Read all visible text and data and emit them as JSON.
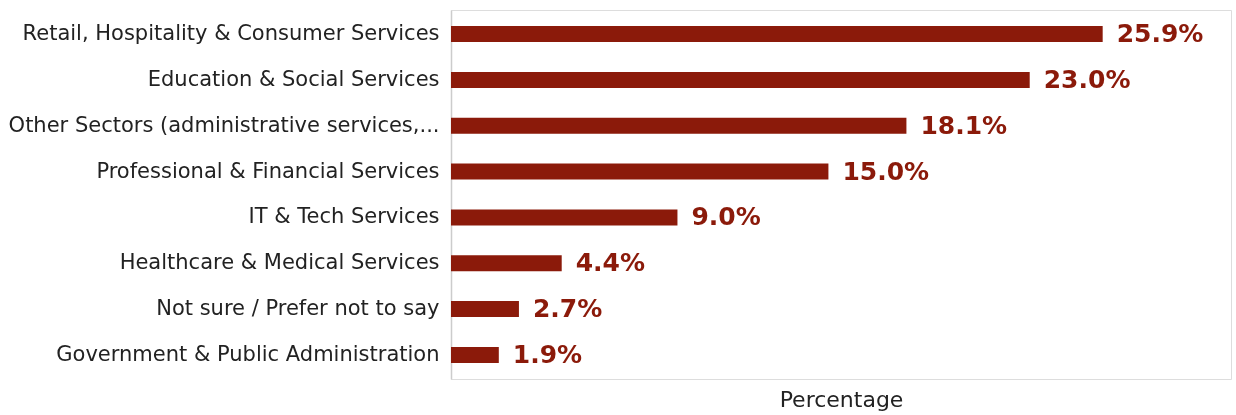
{
  "chart_data": {
    "type": "bar",
    "orientation": "horizontal",
    "xlabel": "Percentage",
    "categories": [
      "Retail, Hospitality & Consumer Services",
      "Education & Social Services",
      "Other Sectors (administrative services,...",
      "Professional & Financial Services",
      "IT & Tech Services",
      "Healthcare & Medical Services",
      "Not sure / Prefer not to say",
      "Government & Public Administration"
    ],
    "values": [
      25.9,
      23.0,
      18.1,
      15.0,
      9.0,
      4.4,
      2.7,
      1.9
    ],
    "value_labels": [
      "25.9%",
      "23.0%",
      "18.1%",
      "15.0%",
      "9.0%",
      "4.4%",
      "2.7%",
      "1.9%"
    ],
    "color": "#8b1a0a",
    "xlim": [
      0,
      31
    ]
  }
}
